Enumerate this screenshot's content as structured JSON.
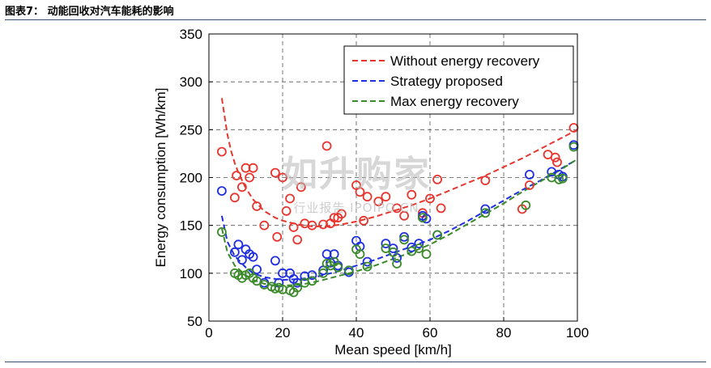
{
  "caption": "图表7： 动能回收对汽车能耗的影响",
  "watermark": {
    "main": "如升购家",
    "sub": "行业报告 IPOIPO.CN"
  },
  "chart_data": {
    "type": "scatter",
    "xlabel": "Mean speed [km/h]",
    "ylabel": "Energy consumption [Wh/km]",
    "xlim": [
      0,
      100
    ],
    "ylim": [
      50,
      350
    ],
    "x_ticks": [
      0,
      20,
      40,
      60,
      80,
      100
    ],
    "y_ticks": [
      50,
      100,
      150,
      200,
      250,
      300,
      350
    ],
    "grid": true,
    "legend_position": "top-right",
    "series": [
      {
        "name": "Without energy recovery",
        "color": "#e8352e",
        "curve": [
          [
            3.5,
            283
          ],
          [
            5,
            245
          ],
          [
            6,
            228
          ],
          [
            7,
            215
          ],
          [
            8,
            205
          ],
          [
            10,
            189
          ],
          [
            12,
            177
          ],
          [
            15,
            165
          ],
          [
            18,
            158
          ],
          [
            20,
            155
          ],
          [
            24,
            151
          ],
          [
            28,
            149
          ],
          [
            32,
            149
          ],
          [
            36,
            151
          ],
          [
            40,
            154
          ],
          [
            45,
            159
          ],
          [
            50,
            165
          ],
          [
            55,
            171
          ],
          [
            60,
            178
          ],
          [
            65,
            186
          ],
          [
            70,
            194
          ],
          [
            75,
            202
          ],
          [
            80,
            211
          ],
          [
            85,
            220
          ],
          [
            90,
            230
          ],
          [
            95,
            240
          ],
          [
            99.5,
            249
          ]
        ],
        "points": [
          [
            3.5,
            227
          ],
          [
            7,
            179
          ],
          [
            7.5,
            202
          ],
          [
            9,
            190
          ],
          [
            10,
            210
          ],
          [
            11,
            200
          ],
          [
            12,
            210
          ],
          [
            13,
            170
          ],
          [
            15,
            150
          ],
          [
            18,
            205
          ],
          [
            18.5,
            138
          ],
          [
            20,
            200
          ],
          [
            21,
            165
          ],
          [
            22,
            178
          ],
          [
            23,
            148
          ],
          [
            24,
            135
          ],
          [
            25,
            190
          ],
          [
            26,
            152
          ],
          [
            28,
            150
          ],
          [
            31,
            151
          ],
          [
            32,
            233
          ],
          [
            33,
            152
          ],
          [
            34,
            158
          ],
          [
            35,
            158
          ],
          [
            36,
            162
          ],
          [
            40,
            192
          ],
          [
            41,
            185
          ],
          [
            42,
            155
          ],
          [
            43,
            180
          ],
          [
            46,
            175
          ],
          [
            48,
            180
          ],
          [
            51,
            168
          ],
          [
            53,
            160
          ],
          [
            55,
            182
          ],
          [
            58,
            163
          ],
          [
            60,
            178
          ],
          [
            62,
            198
          ],
          [
            63,
            168
          ],
          [
            75,
            197
          ],
          [
            85,
            167
          ],
          [
            87,
            192
          ],
          [
            92,
            224
          ],
          [
            94,
            221
          ],
          [
            94.5,
            216
          ],
          [
            99,
            252
          ]
        ]
      },
      {
        "name": "Strategy proposed",
        "color": "#1f2ee0",
        "curve": [
          [
            3.5,
            160
          ],
          [
            5,
            133
          ],
          [
            7,
            118
          ],
          [
            10,
            106
          ],
          [
            12,
            100
          ],
          [
            15,
            96
          ],
          [
            18,
            94
          ],
          [
            20,
            93
          ],
          [
            25,
            94
          ],
          [
            30,
            97
          ],
          [
            35,
            102
          ],
          [
            40,
            108
          ],
          [
            45,
            114
          ],
          [
            50,
            121
          ],
          [
            55,
            128
          ],
          [
            60,
            135
          ],
          [
            65,
            144
          ],
          [
            70,
            154
          ],
          [
            75,
            165
          ],
          [
            80,
            176
          ],
          [
            85,
            187
          ],
          [
            90,
            197
          ],
          [
            95,
            208
          ],
          [
            99.5,
            218
          ]
        ],
        "points": [
          [
            3.5,
            186
          ],
          [
            7,
            122
          ],
          [
            8,
            130
          ],
          [
            9,
            114
          ],
          [
            10,
            125
          ],
          [
            11,
            120
          ],
          [
            12,
            117
          ],
          [
            13,
            104
          ],
          [
            15,
            90
          ],
          [
            18,
            113
          ],
          [
            19,
            90
          ],
          [
            20,
            100
          ],
          [
            22,
            100
          ],
          [
            23,
            94
          ],
          [
            24,
            90
          ],
          [
            26,
            97
          ],
          [
            28,
            98
          ],
          [
            31,
            103
          ],
          [
            32,
            120
          ],
          [
            33,
            111
          ],
          [
            34,
            120
          ],
          [
            35,
            108
          ],
          [
            38,
            101
          ],
          [
            40,
            134
          ],
          [
            41,
            128
          ],
          [
            43,
            112
          ],
          [
            48,
            131
          ],
          [
            50,
            126
          ],
          [
            51,
            116
          ],
          [
            53,
            138
          ],
          [
            55,
            127
          ],
          [
            57,
            131
          ],
          [
            58,
            160
          ],
          [
            59,
            157
          ],
          [
            62,
            140
          ],
          [
            75,
            167
          ],
          [
            87,
            203
          ],
          [
            93,
            206
          ],
          [
            95,
            203
          ],
          [
            96,
            201
          ],
          [
            99,
            234
          ]
        ]
      },
      {
        "name": "Max energy recovery",
        "color": "#3a8a2a",
        "curve": [
          [
            3.5,
            147
          ],
          [
            5,
            122
          ],
          [
            7,
            108
          ],
          [
            10,
            98
          ],
          [
            12,
            93
          ],
          [
            15,
            89
          ],
          [
            18,
            87
          ],
          [
            20,
            87
          ],
          [
            25,
            88
          ],
          [
            30,
            92
          ],
          [
            35,
            97
          ],
          [
            40,
            102
          ],
          [
            45,
            108
          ],
          [
            50,
            115
          ],
          [
            55,
            122
          ],
          [
            60,
            130
          ],
          [
            65,
            140
          ],
          [
            70,
            151
          ],
          [
            75,
            162
          ],
          [
            80,
            173
          ],
          [
            85,
            185
          ],
          [
            90,
            196
          ],
          [
            95,
            207
          ],
          [
            99.5,
            218
          ]
        ],
        "points": [
          [
            3.5,
            143
          ],
          [
            7,
            100
          ],
          [
            8,
            98
          ],
          [
            9,
            95
          ],
          [
            10,
            98
          ],
          [
            11,
            100
          ],
          [
            12,
            95
          ],
          [
            13,
            92
          ],
          [
            15,
            88
          ],
          [
            17,
            86
          ],
          [
            18,
            84
          ],
          [
            19,
            85
          ],
          [
            20,
            83
          ],
          [
            22,
            82
          ],
          [
            23,
            80
          ],
          [
            24,
            85
          ],
          [
            26,
            90
          ],
          [
            28,
            92
          ],
          [
            31,
            100
          ],
          [
            32,
            110
          ],
          [
            33,
            108
          ],
          [
            34,
            112
          ],
          [
            35,
            106
          ],
          [
            38,
            103
          ],
          [
            40,
            125
          ],
          [
            41,
            120
          ],
          [
            43,
            107
          ],
          [
            48,
            126
          ],
          [
            50,
            122
          ],
          [
            51,
            110
          ],
          [
            53,
            135
          ],
          [
            55,
            123
          ],
          [
            57,
            126
          ],
          [
            58,
            158
          ],
          [
            59,
            120
          ],
          [
            62,
            140
          ],
          [
            75,
            163
          ],
          [
            86,
            171
          ],
          [
            93,
            200
          ],
          [
            95,
            198
          ],
          [
            96,
            199
          ],
          [
            99,
            232
          ]
        ]
      }
    ]
  }
}
